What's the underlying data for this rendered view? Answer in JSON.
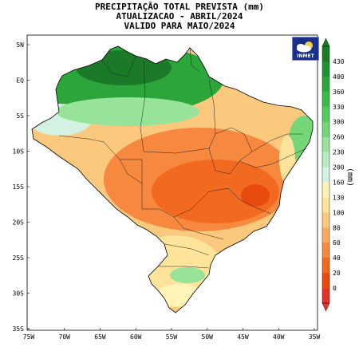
{
  "title": {
    "line1": "PRECIPITAÇÃO TOTAL PREVISTA (mm)",
    "line2": "ATUALIZACAO - ABRIL/2024",
    "line3": "VALIDO PARA MAIO/2024"
  },
  "logo": {
    "text": "INMET",
    "icon": "weather-cloud-sun-icon"
  },
  "axes": {
    "lat_labels": [
      "5N",
      "EQ",
      "5S",
      "10S",
      "15S",
      "20S",
      "25S",
      "30S",
      "35S"
    ],
    "lon_labels": [
      "75W",
      "70W",
      "65W",
      "60W",
      "55W",
      "50W",
      "45W",
      "40W",
      "35W"
    ],
    "lat_range": [
      -35,
      6
    ],
    "lon_range": [
      -75,
      -34
    ]
  },
  "colorbar": {
    "unit": "(mm)",
    "levels": [
      "430",
      "400",
      "360",
      "330",
      "300",
      "260",
      "230",
      "200",
      "160",
      "130",
      "100",
      "80",
      "60",
      "40",
      "20",
      "0"
    ],
    "colors": [
      "#1a7a2a",
      "#1f8f31",
      "#2ca53a",
      "#3db94a",
      "#55c95c",
      "#74d777",
      "#98e39a",
      "#b8ecbf",
      "#d4f2e2",
      "#fff3b8",
      "#fde49a",
      "#fbc97e",
      "#f9a962",
      "#f6893f",
      "#f16a1f",
      "#e94a0f",
      "#e6332a"
    ]
  },
  "map": {
    "regions": [
      {
        "name": "amazon-north",
        "category": "300-330 mm"
      },
      {
        "name": "northern-coast",
        "category": "230-260 mm"
      },
      {
        "name": "central-brazil",
        "category": "20-60 mm"
      },
      {
        "name": "northeast-coast",
        "category": "160-260 mm"
      },
      {
        "name": "south-brazil",
        "category": "100-200 mm"
      }
    ]
  }
}
